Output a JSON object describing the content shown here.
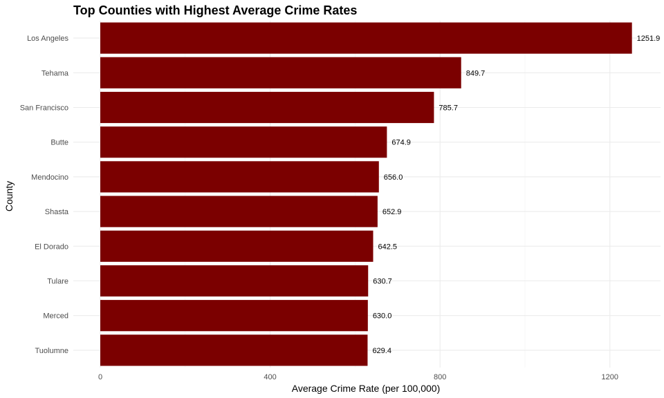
{
  "chart_data": {
    "type": "bar",
    "orientation": "horizontal",
    "title": "Top Counties with Highest Average Crime Rates",
    "xlabel": "Average Crime Rate (per 100,000)",
    "ylabel": "County",
    "categories": [
      "Los Angeles",
      "Tehama",
      "San Francisco",
      "Butte",
      "Mendocino",
      "Shasta",
      "El Dorado",
      "Tulare",
      "Merced",
      "Tuolumne"
    ],
    "values": [
      1251.9,
      849.7,
      785.7,
      674.9,
      656.0,
      652.9,
      642.5,
      630.7,
      630.0,
      629.4
    ],
    "data_labels": [
      "1251.9",
      "849.7",
      "785.7",
      "674.9",
      "656.0",
      "652.9",
      "642.5",
      "630.7",
      "630.0",
      "629.4"
    ],
    "xticks": [
      0,
      400,
      800,
      1200
    ],
    "xtick_labels": [
      "0",
      "400",
      "800",
      "1200"
    ],
    "xlim": [
      0,
      1300
    ],
    "bar_color": "#7b0000",
    "grid": true,
    "legend": false
  }
}
